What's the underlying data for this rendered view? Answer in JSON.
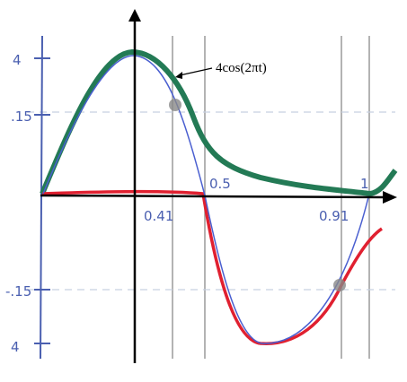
{
  "axis_labels": {
    "y_top": "4",
    "y_upper": ".15",
    "y_lower": "-.15",
    "y_bottom": "4"
  },
  "x_labels": {
    "a": "0.41",
    "b": "0.5",
    "c": "0.91",
    "d": "1"
  },
  "annotation": "4cos(2πt)"
}
